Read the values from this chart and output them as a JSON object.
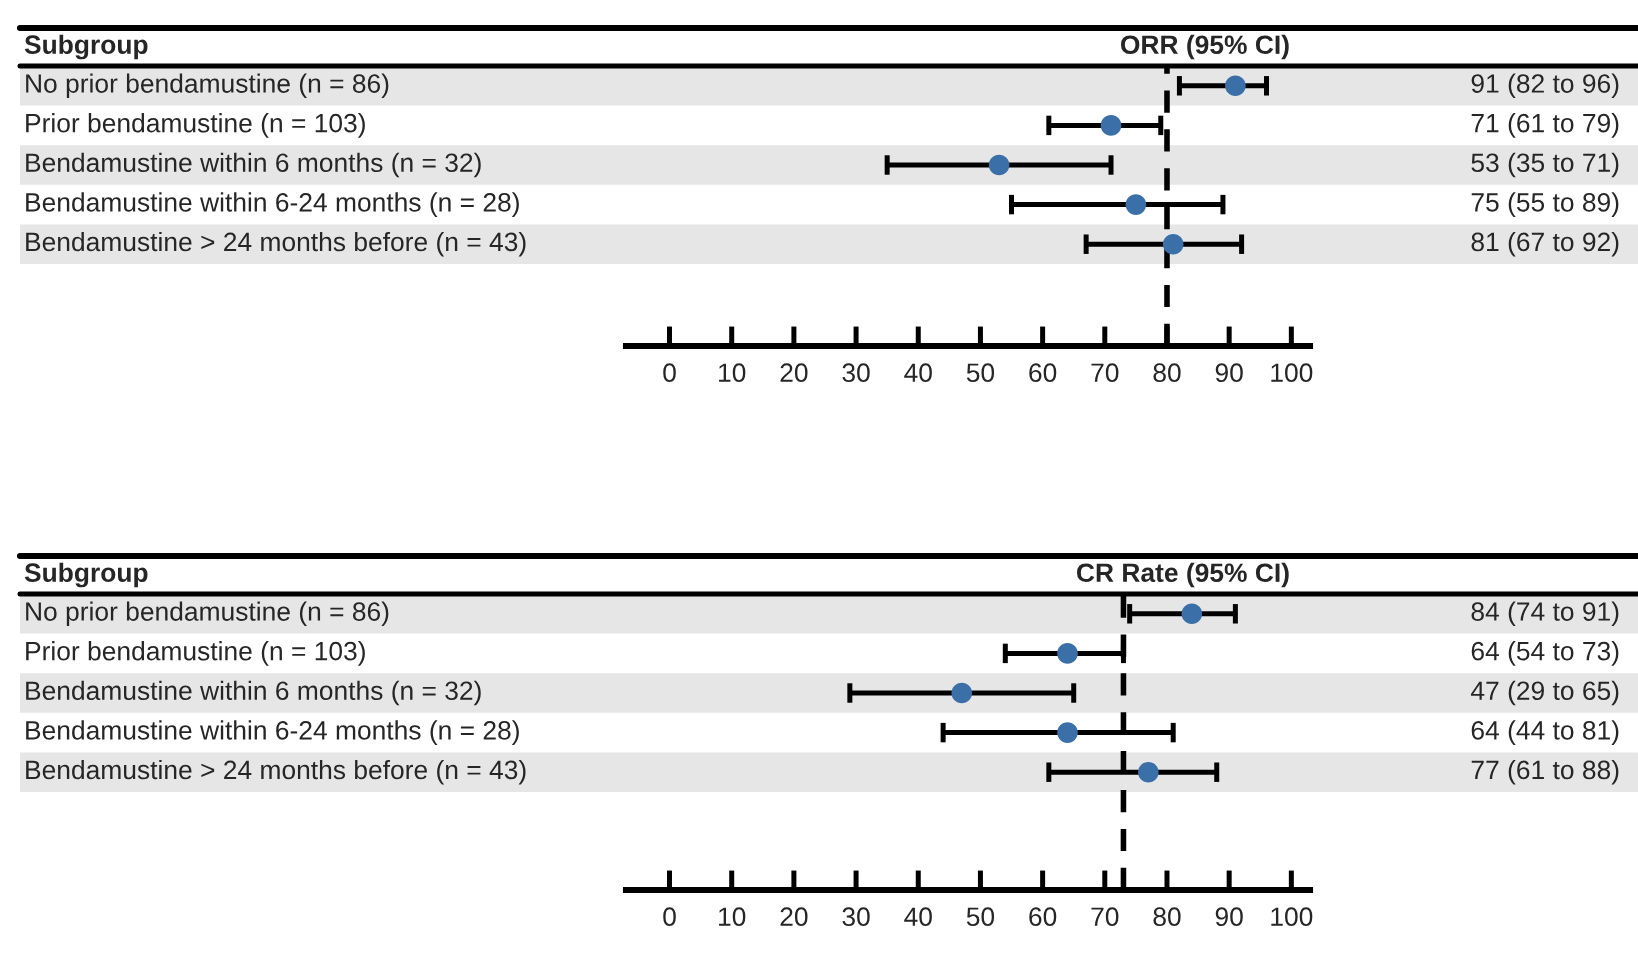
{
  "chart_data": [
    {
      "type": "scatter",
      "orientation": "horizontal",
      "title": "ORR (95% CI)",
      "ylabel": "Subgroup",
      "categories": [
        "No prior bendamustine (n = 86)",
        "Prior bendamustine (n = 103)",
        "Bendamustine within 6 months (n = 32)",
        "Bendamustine within 6-24 months (n = 28)",
        "Bendamustine > 24 months before (n = 43)"
      ],
      "color": "#3b6fa8",
      "values": [
        91,
        71,
        53,
        75,
        81
      ],
      "errors": [
        [
          82,
          96
        ],
        [
          61,
          79
        ],
        [
          35,
          71
        ],
        [
          55,
          89
        ],
        [
          67,
          92
        ]
      ],
      "value_labels": [
        "91 (82 to 96)",
        "71 (61 to 79)",
        "53 (35 to 71)",
        "75 (55 to 89)",
        "81 (67 to 92)"
      ],
      "marker": "circle",
      "xlim": [
        -7,
        103
      ],
      "xticks": [
        0,
        10,
        20,
        30,
        40,
        50,
        60,
        70,
        80,
        90,
        100
      ],
      "ref_lines": [
        {
          "axis": "x",
          "value": 80,
          "line_style": "dashed"
        }
      ]
    },
    {
      "type": "scatter",
      "orientation": "horizontal",
      "title": "CR Rate (95% CI)",
      "ylabel": "Subgroup",
      "categories": [
        "No prior bendamustine (n = 86)",
        "Prior bendamustine (n = 103)",
        "Bendamustine within 6 months (n = 32)",
        "Bendamustine within 6-24 months (n = 28)",
        "Bendamustine > 24 months before (n = 43)"
      ],
      "color": "#3b6fa8",
      "values": [
        84,
        64,
        47,
        64,
        77
      ],
      "errors": [
        [
          74,
          91
        ],
        [
          54,
          73
        ],
        [
          29,
          65
        ],
        [
          44,
          81
        ],
        [
          61,
          88
        ]
      ],
      "value_labels": [
        "84 (74 to 91)",
        "64 (54 to 73)",
        "47 (29 to 65)",
        "64 (44 to 81)",
        "77 (61 to 88)"
      ],
      "marker": "circle",
      "xlim": [
        -7,
        103
      ],
      "xticks": [
        0,
        10,
        20,
        30,
        40,
        50,
        60,
        70,
        80,
        90,
        100
      ],
      "ref_lines": [
        {
          "axis": "x",
          "value": 73,
          "line_style": "dashed"
        }
      ]
    }
  ]
}
